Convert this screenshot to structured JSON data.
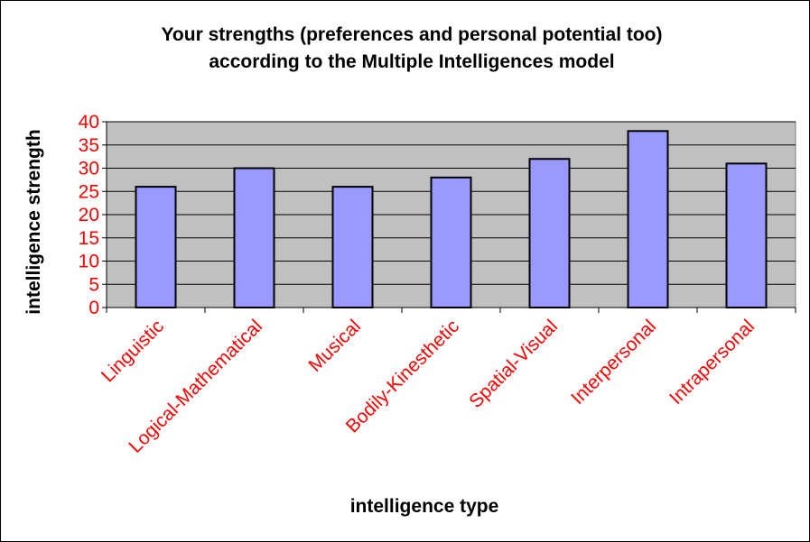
{
  "chart_data": {
    "type": "bar",
    "title": [
      "Your strengths (preferences and personal potential too)",
      "according to the Multiple Intelligences model"
    ],
    "xlabel": "intelligence type",
    "ylabel": "intelligence strength",
    "categories": [
      "Linguistic",
      "Logical-Mathematical",
      "Musical",
      "Bodily-Kinesthetic",
      "Spatial-Visual",
      "Interpersonal",
      "Intrapersonal"
    ],
    "values": [
      26,
      30,
      26,
      28,
      32,
      38,
      31
    ],
    "ylim": [
      0,
      40
    ],
    "yticks": [
      0,
      5,
      10,
      15,
      20,
      25,
      30,
      35,
      40
    ],
    "grid": true,
    "legend": "none",
    "colors": {
      "bar": "#9999ff",
      "plot_bg": "#c0c0c0",
      "tick_labels": "#ff0000"
    }
  }
}
